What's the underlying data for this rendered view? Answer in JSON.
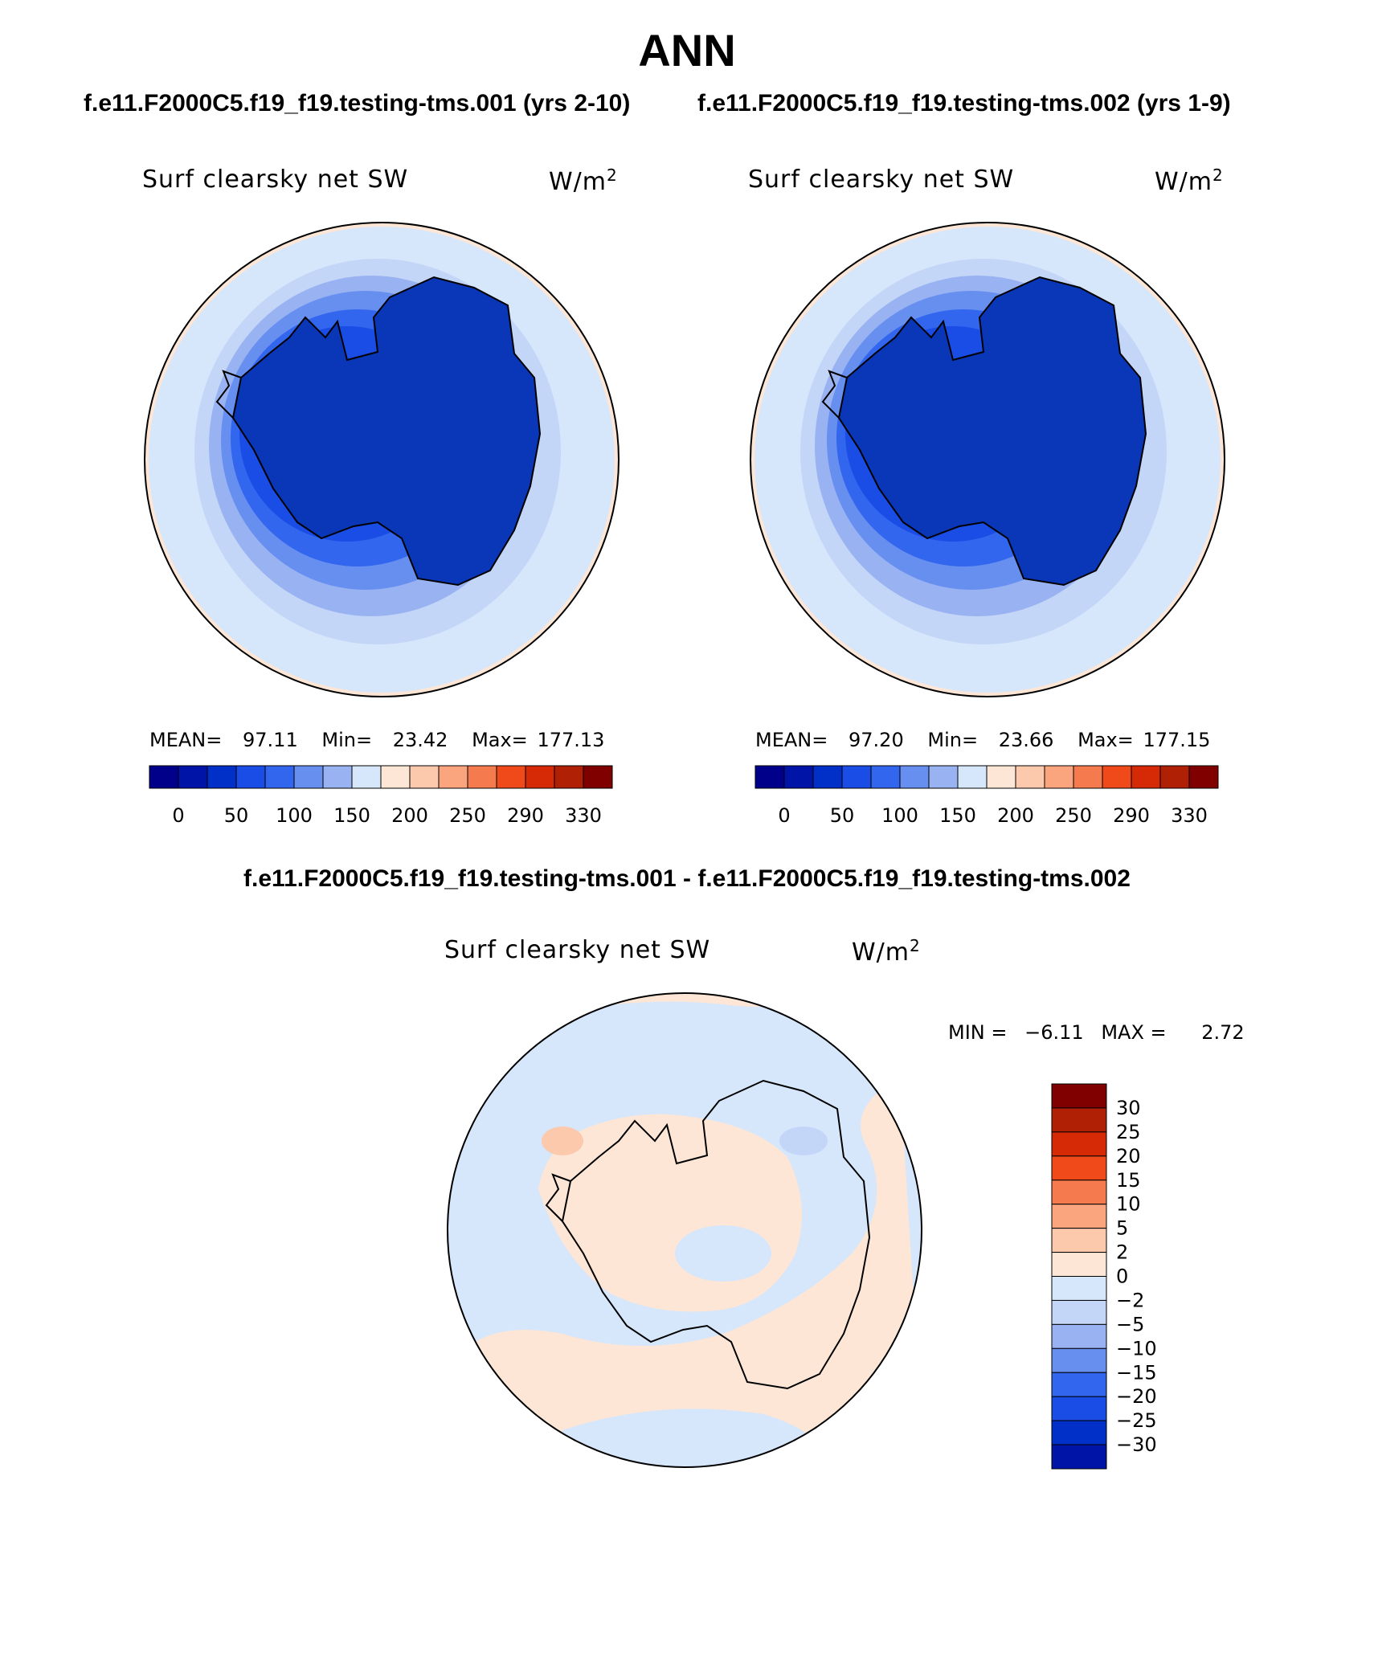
{
  "figure": {
    "title": "ANN",
    "case1_title": "f.e11.F2000C5.f19_f19.testing-tms.001 (yrs 2-10)",
    "case2_title": "f.e11.F2000C5.f19_f19.testing-tms.002 (yrs 1-9)",
    "diff_title": "f.e11.F2000C5.f19_f19.testing-tms.001 - f.e11.F2000C5.f19_f19.testing-tms.002"
  },
  "colors": {
    "abs_levels": [
      "#00008b",
      "#0015a8",
      "#0030c8",
      "#1a4ce6",
      "#3366ee",
      "#668fef",
      "#99b3f2",
      "#d6e6fb",
      "#fde6d6",
      "#fcc9ad",
      "#fba57f",
      "#f57a4e",
      "#f04a1a",
      "#d52a05",
      "#b02005",
      "#800000"
    ],
    "continent": "#0a36b8",
    "coast": "#000000"
  },
  "chart_data": [
    {
      "type": "heatmap",
      "projection": "south-polar-stereographic",
      "variable": "Surf clearsky net SW",
      "units": "W/m",
      "units_exp": "2",
      "mean_label": "MEAN=",
      "mean": "97.11",
      "min_label": "Min=",
      "min": "23.42",
      "max_label": "Max=",
      "max": "177.13",
      "colorbar_ticks": [
        "0",
        "50",
        "100",
        "150",
        "200",
        "250",
        "290",
        "330"
      ]
    },
    {
      "type": "heatmap",
      "projection": "south-polar-stereographic",
      "variable": "Surf clearsky net SW",
      "units": "W/m",
      "units_exp": "2",
      "mean_label": "MEAN=",
      "mean": "97.20",
      "min_label": "Min=",
      "min": "23.66",
      "max_label": "Max=",
      "max": "177.15",
      "colorbar_ticks": [
        "0",
        "50",
        "100",
        "150",
        "200",
        "250",
        "290",
        "330"
      ]
    },
    {
      "type": "heatmap",
      "projection": "south-polar-stereographic",
      "variable": "Surf clearsky net SW",
      "units": "W/m",
      "units_exp": "2",
      "min_label": "MIN =",
      "min": "−6.11",
      "max_label": "MAX =",
      "max": "2.72",
      "colorbar_ticks": [
        "30",
        "25",
        "20",
        "15",
        "10",
        "5",
        "2",
        "0",
        "−2",
        "−5",
        "−10",
        "−15",
        "−20",
        "−25",
        "−30"
      ],
      "colorbar_colors": [
        "#800000",
        "#b02005",
        "#d52a05",
        "#f04a1a",
        "#f57a4e",
        "#fba57f",
        "#fcc9ad",
        "#fde6d6",
        "#d6e6fb",
        "#c4d6f7",
        "#99b3f2",
        "#668fef",
        "#3366ee",
        "#1a4ce6",
        "#0030c8",
        "#0015a8"
      ]
    }
  ]
}
